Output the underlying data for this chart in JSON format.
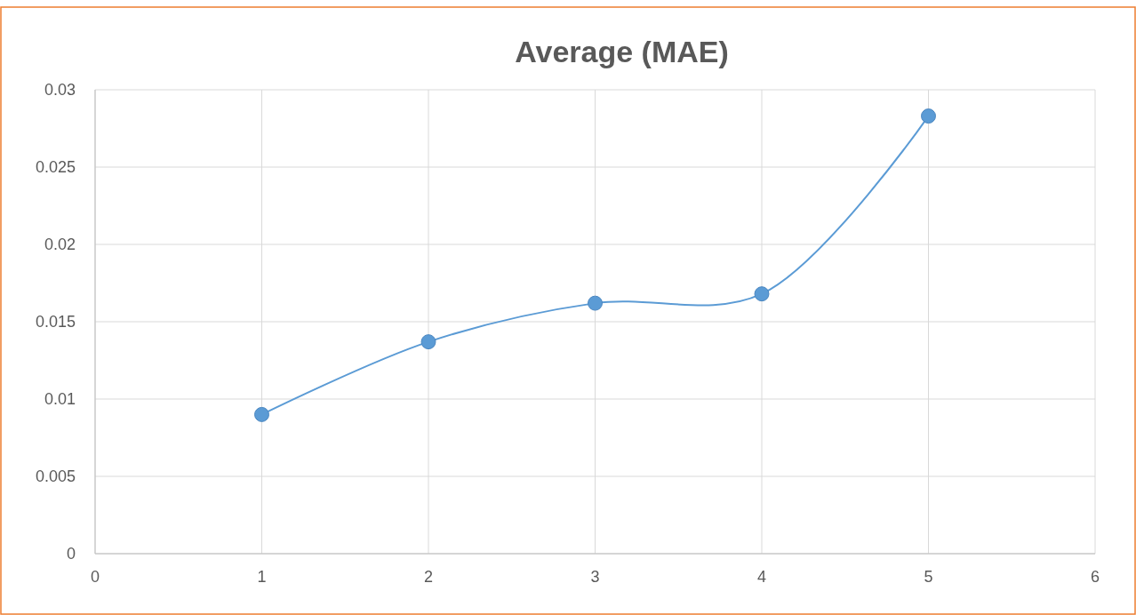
{
  "chart_data": {
    "type": "line",
    "title": "Average (MAE)",
    "x": [
      1,
      2,
      3,
      4,
      5
    ],
    "series": [
      {
        "color": "#5b9bd5",
        "values": [
          0.009,
          0.0137,
          0.0162,
          0.0168,
          0.0283
        ]
      }
    ],
    "xlim": [
      0,
      6
    ],
    "xticks": [
      0,
      1,
      2,
      3,
      4,
      5,
      6
    ],
    "ylim": [
      0,
      0.03
    ],
    "yticks": [
      0,
      0.005,
      0.01,
      0.015,
      0.02,
      0.025,
      0.03
    ],
    "grid": true,
    "marker": "circle",
    "line_style": "solid"
  }
}
